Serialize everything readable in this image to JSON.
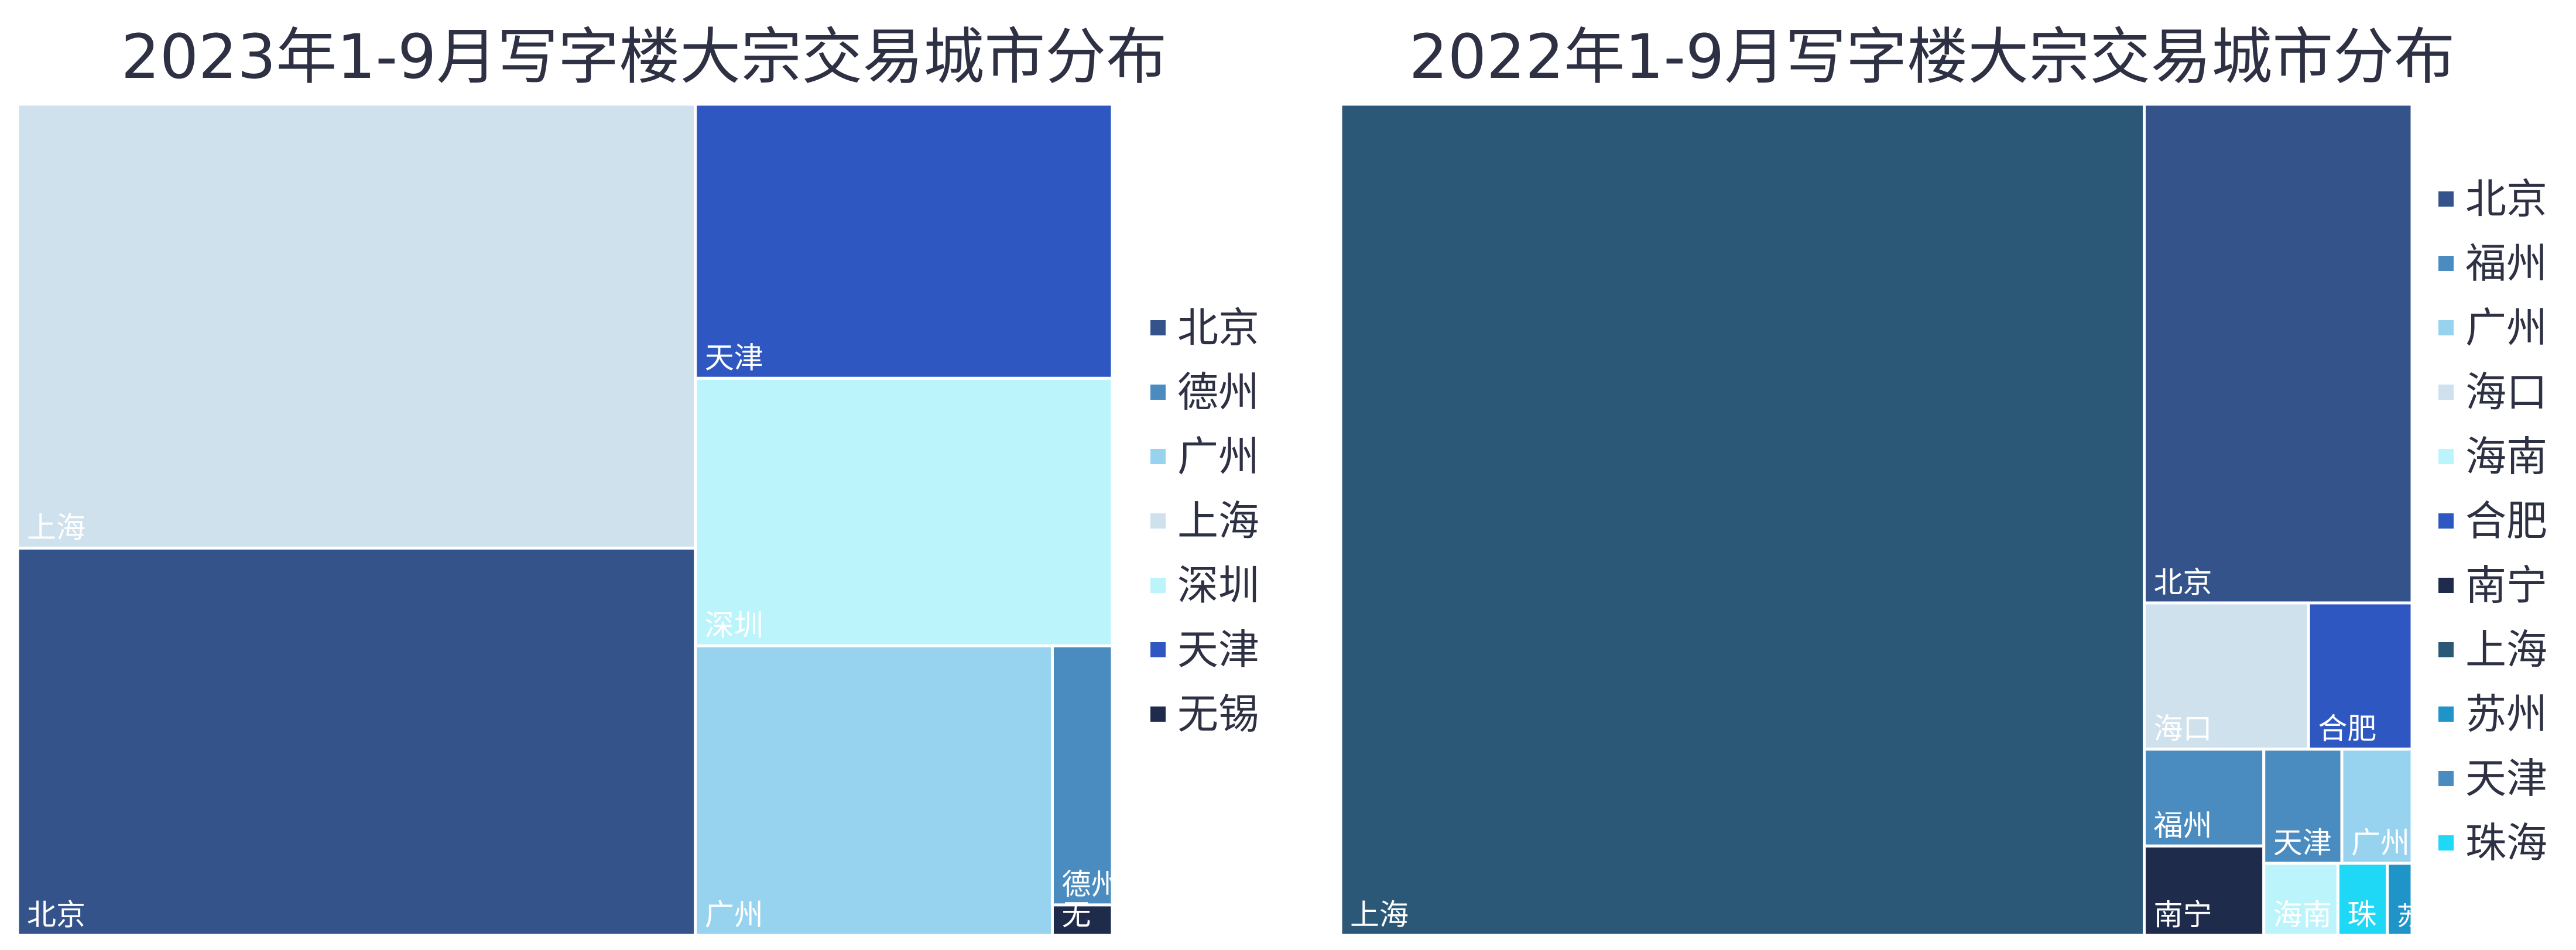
{
  "chart_data": [
    {
      "type": "treemap",
      "title": "2023年1-9月写字楼大宗交易城市分布",
      "legend": [
        "北京",
        "德州",
        "广州",
        "上海",
        "深圳",
        "天津",
        "无锡"
      ],
      "colors": {
        "北京": "#34538a",
        "德州": "#4b8cc0",
        "广州": "#97d3ee",
        "上海": "#cfe1ec",
        "深圳": "#bcf4fb",
        "天津": "#2e57c1",
        "无锡": "#1e2b4b"
      },
      "data": [
        {
          "name": "上海",
          "label": "上海",
          "value": 32.9
        },
        {
          "name": "北京",
          "label": "北京",
          "value": 28.7
        },
        {
          "name": "广州",
          "label": "广州",
          "value": 11.3
        },
        {
          "name": "天津",
          "label": "天津",
          "value": 12.5
        },
        {
          "name": "深圳",
          "label": "深圳",
          "value": 12.2
        },
        {
          "name": "德州",
          "label": "德州",
          "value": 1.7
        },
        {
          "name": "无锡",
          "label": "无",
          "value": 0.2
        }
      ]
    },
    {
      "type": "treemap",
      "title": "2022年1-9月写字楼大宗交易城市分布",
      "legend": [
        "北京",
        "福州",
        "广州",
        "海口",
        "海南",
        "合肥",
        "南宁",
        "上海",
        "苏州",
        "天津",
        "珠海"
      ],
      "colors": {
        "北京": "#34538a",
        "福州": "#4b8cc0",
        "广州": "#97d3ee",
        "海口": "#cfe1ec",
        "海南": "#bcf4fb",
        "合肥": "#2e57c1",
        "南宁": "#1e2b4b",
        "上海": "#2c5878",
        "苏州": "#1f94c8",
        "天津": "#4b8cc0",
        "珠海": "#1ed8f5"
      },
      "data": [
        {
          "name": "上海",
          "label": "上海",
          "value": 75.0
        },
        {
          "name": "北京",
          "label": "北京",
          "value": 15.0
        },
        {
          "name": "海口",
          "label": "海口",
          "value": 2.7
        },
        {
          "name": "合肥",
          "label": "合肥",
          "value": 1.7
        },
        {
          "name": "福州",
          "label": "福州",
          "value": 1.3
        },
        {
          "name": "南宁",
          "label": "南宁",
          "value": 1.2
        },
        {
          "name": "天津",
          "label": "天津",
          "value": 1.0
        },
        {
          "name": "广州",
          "label": "广州",
          "value": 0.9
        },
        {
          "name": "海南",
          "label": "海南",
          "value": 0.6
        },
        {
          "name": "珠海",
          "label": "珠",
          "value": 0.4
        },
        {
          "name": "苏州",
          "label": "苏",
          "value": 0.2
        }
      ]
    }
  ]
}
